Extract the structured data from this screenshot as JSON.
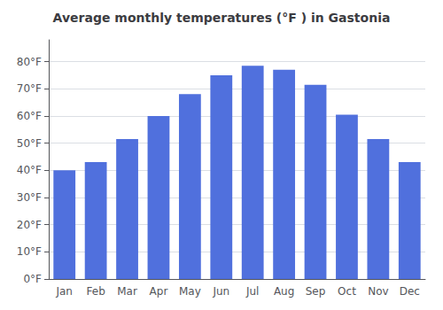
{
  "chart_data": {
    "type": "bar",
    "title": "Average monthly temperatures (°F ) in Gastonia",
    "categories": [
      "Jan",
      "Feb",
      "Mar",
      "Apr",
      "May",
      "Jun",
      "Jul",
      "Aug",
      "Sep",
      "Oct",
      "Nov",
      "Dec"
    ],
    "values": [
      40,
      43,
      51.5,
      60,
      68,
      75,
      78.5,
      77,
      71.5,
      60.5,
      51.5,
      43
    ],
    "ylim": [
      0,
      88
    ],
    "yticks": [
      {
        "value": 0,
        "label": "0°F"
      },
      {
        "value": 10,
        "label": "10°F"
      },
      {
        "value": 20,
        "label": "20°F"
      },
      {
        "value": 30,
        "label": "30°F"
      },
      {
        "value": 40,
        "label": "40°F"
      },
      {
        "value": 50,
        "label": "50°F"
      },
      {
        "value": 60,
        "label": "60°F"
      },
      {
        "value": 70,
        "label": "70°F"
      },
      {
        "value": 80,
        "label": "80°F"
      }
    ],
    "grid": true
  }
}
